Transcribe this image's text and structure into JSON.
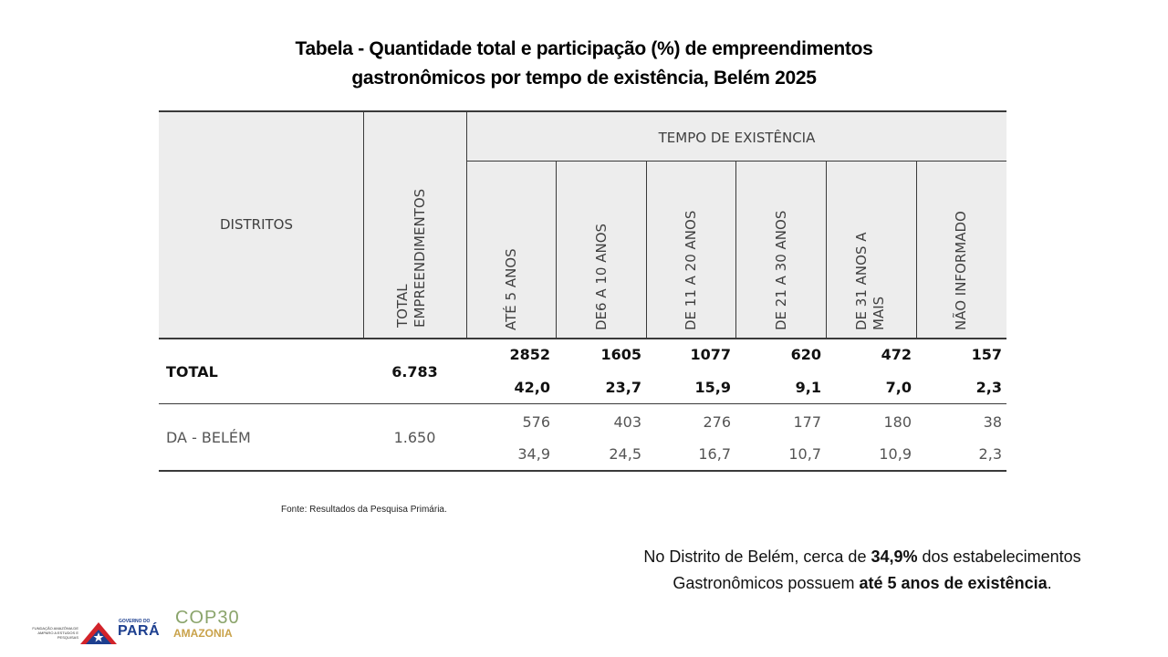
{
  "title": {
    "line1": "Tabela - Quantidade total e participação (%) de empreendimentos",
    "line2": "gastronômicos por tempo de existência, Belém 2025"
  },
  "table": {
    "header_districts": "DISTRITOS",
    "header_total": "TOTAL EMPREENDIMENTOS",
    "header_total_line1": "TOTAL",
    "header_total_line2": "EMPREENDIMENTOS",
    "header_group": "TEMPO DE EXISTÊNCIA",
    "columns": [
      {
        "line1": "ATÉ 5 ANOS",
        "line2": ""
      },
      {
        "line1": "DE6 A 10 ANOS",
        "line2": ""
      },
      {
        "line1": "DE 11 A 20 ANOS",
        "line2": ""
      },
      {
        "line1": "DE 21 A 30 ANOS",
        "line2": ""
      },
      {
        "line1": "DE 31 ANOS A",
        "line2": "MAIS"
      },
      {
        "line1": "NÃO INFORMADO",
        "line2": ""
      }
    ],
    "rows": [
      {
        "label": "TOTAL",
        "total": "6.783",
        "counts": [
          "2852",
          "1605",
          "1077",
          "620",
          "472",
          "157"
        ],
        "percents": [
          "42,0",
          "23,7",
          "15,9",
          "9,1",
          "7,0",
          "2,3"
        ]
      },
      {
        "label": "DA - BELÉM",
        "total": "1.650",
        "counts": [
          "576",
          "403",
          "276",
          "177",
          "180",
          "38"
        ],
        "percents": [
          "34,9",
          "24,5",
          "16,7",
          "10,7",
          "10,9",
          "2,3"
        ]
      }
    ]
  },
  "source": "Fonte: Resultados da Pesquisa Primária.",
  "note": {
    "part1": "No Distrito de Belém, cerca de ",
    "bold1": "34,9%",
    "part2": " dos estabelecimentos",
    "part3": "Gastronômicos possuem ",
    "bold2": "até 5 anos de existência",
    "part4": "."
  },
  "logos": {
    "fapespa_line1": "FUNDAÇÃO AMAZÔNIA DE",
    "fapespa_line2": "AMPARO A ESTUDOS E",
    "fapespa_line3": "PESQUISAS",
    "gov_top": "GOVERNO DO",
    "gov_name": "PARÁ",
    "cop_top": "COP30",
    "cop_bottom": "AMAZONIA",
    "colors": {
      "red": "#d2232a",
      "blue": "#1d3f8f",
      "cop_green": "#8aa46b",
      "cop_gold": "#c9a24a"
    }
  }
}
